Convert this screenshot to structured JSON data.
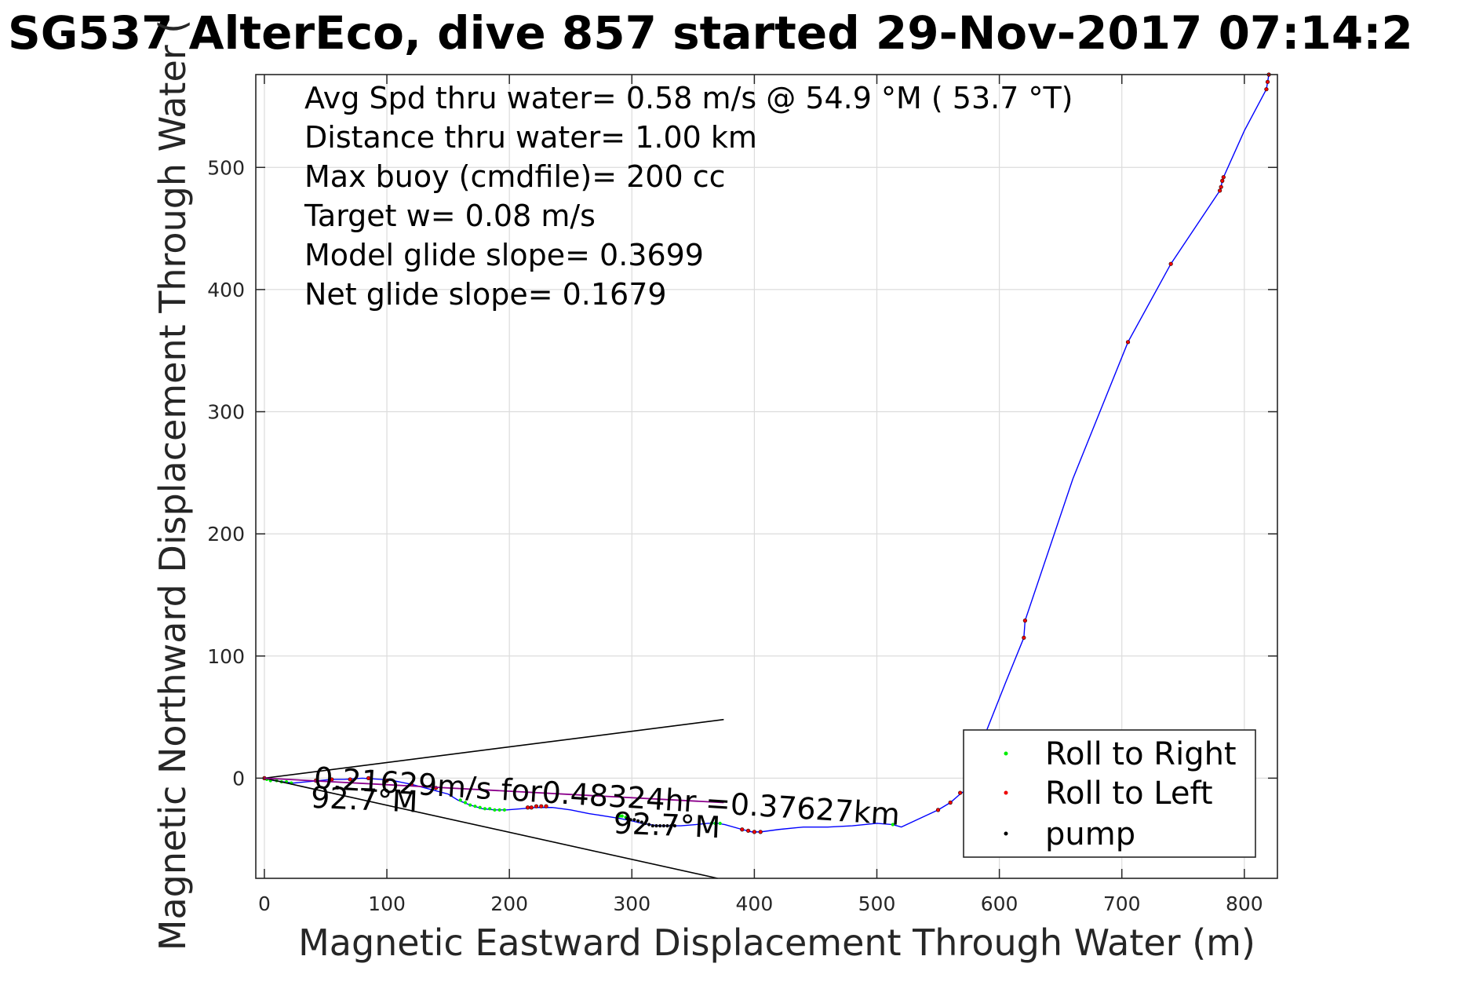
{
  "chart_data": {
    "type": "line",
    "title": "SG537 AlterEco, dive 857 started 29-Nov-2017 07:14:2",
    "xlabel": "Magnetic Eastward Displacement Through Water (m)",
    "ylabel": "Magnetic Northward Displacement Through Water (",
    "xlim": [
      -7,
      827
    ],
    "ylim": [
      -82,
      576
    ],
    "xticks": [
      0,
      100,
      200,
      300,
      400,
      500,
      600,
      700,
      800
    ],
    "yticks": [
      0,
      100,
      200,
      300,
      400,
      500
    ],
    "xtick_labels": [
      "0",
      "100",
      "200",
      "300",
      "400",
      "500",
      "600",
      "700",
      "800"
    ],
    "ytick_labels": [
      "0",
      "100",
      "200",
      "300",
      "400",
      "500"
    ],
    "grid": true,
    "colors": {
      "track": "#0000ff",
      "roll_right": "#00ee00",
      "roll_left": "#ee0000",
      "pump": "#000000",
      "axis": "#262626",
      "grid": "#dcdcdc"
    },
    "info_lines": [
      "Avg Spd thru water=  0.58 m/s @  54.9 °M ( 53.7 °T)",
      "Distance thru water=  1.00 km",
      "Max buoy (cmdfile)= 200 cc",
      "Target w= 0.08 m/s",
      "Model glide slope= 0.3699",
      "Net glide slope= 0.1679"
    ],
    "current_annotation": {
      "text": "0.21629m/s for0.48324hr =0.37627km",
      "start": [
        0,
        0
      ],
      "end": [
        375,
        -20
      ],
      "rotation_deg": 3.6
    },
    "heading_labels": [
      {
        "text": "92.7°M",
        "x": 38,
        "y": -15
      },
      {
        "text": "92.7°M",
        "x": 285,
        "y": -36
      }
    ],
    "cone_lines": [
      {
        "x": [
          0,
          375
        ],
        "y": [
          0,
          48
        ]
      },
      {
        "x": [
          0,
          370
        ],
        "y": [
          0,
          -84
        ]
      }
    ],
    "legend": {
      "location": "bottom-right",
      "entries": [
        "Roll to Right",
        "Roll to Left",
        "pump"
      ]
    },
    "series": [
      {
        "name": "track",
        "style": "line",
        "x": [
          0,
          8,
          16,
          24,
          34,
          45,
          55,
          65,
          80,
          95,
          105,
          120,
          135,
          150,
          158,
          168,
          178,
          188,
          198,
          210,
          222,
          235,
          250,
          265,
          278,
          290,
          300,
          308,
          315,
          322,
          330,
          340,
          352,
          362,
          370,
          376,
          390,
          398,
          405,
          420,
          440,
          460,
          480,
          500,
          513,
          520,
          535,
          550,
          560,
          568,
          575,
          590,
          605,
          620,
          621,
          660,
          705,
          740,
          780,
          781,
          782,
          783,
          800,
          818,
          819,
          820
        ],
        "y": [
          0,
          -2,
          -3,
          -4,
          -3,
          -2,
          -1,
          -1,
          0,
          -1,
          -2,
          -5,
          -9,
          -13,
          -18,
          -22,
          -25,
          -26,
          -26,
          -25,
          -24,
          -24,
          -26,
          -29,
          -31,
          -33,
          -35,
          -37,
          -38,
          -39,
          -39,
          -39,
          -38,
          -37,
          -37,
          -38,
          -42,
          -44,
          -44,
          -42,
          -40,
          -40,
          -39,
          -37,
          -38,
          -40,
          -33,
          -26,
          -20,
          -13,
          -8,
          40,
          78,
          115,
          129,
          245,
          357,
          421,
          481,
          484,
          489,
          492,
          530,
          564,
          570,
          576
        ]
      },
      {
        "name": "Roll to Right",
        "style": "marker",
        "x": [
          2,
          5,
          10,
          14,
          18,
          22,
          160,
          164,
          168,
          172,
          176,
          180,
          184,
          188,
          192,
          196,
          290,
          292,
          295,
          365,
          368,
          372,
          513
        ],
        "y": [
          -1,
          -2,
          -2,
          -3,
          -3,
          -4,
          -18,
          -20,
          -22,
          -23,
          -24,
          -25,
          -25,
          -26,
          -26,
          -26,
          -31,
          -31,
          -32,
          -37,
          -37,
          -37,
          -38
        ]
      },
      {
        "name": "Roll to Left",
        "style": "marker",
        "x": [
          0,
          42,
          55,
          70,
          85,
          100,
          120,
          140,
          215,
          218,
          222,
          226,
          230,
          390,
          395,
          400,
          405,
          550,
          560,
          568,
          620,
          621,
          705,
          740,
          780,
          781,
          782,
          783,
          818,
          819,
          820
        ],
        "y": [
          0,
          -2,
          -1,
          -1,
          0,
          -2,
          -5,
          -8,
          -24,
          -24,
          -23,
          -23,
          -23,
          -42,
          -43,
          -44,
          -44,
          -26,
          -20,
          -12,
          115,
          129,
          357,
          421,
          481,
          484,
          489,
          492,
          564,
          570,
          576
        ],
        "also_pump": true
      },
      {
        "name": "pump",
        "style": "marker",
        "x": [
          296,
          299,
          302,
          305,
          308,
          311,
          314,
          317,
          320,
          323,
          326,
          329,
          332,
          335
        ],
        "y": [
          -33,
          -34,
          -34,
          -35,
          -36,
          -37,
          -38,
          -39,
          -39,
          -39,
          -39,
          -39,
          -39,
          -39
        ]
      }
    ]
  }
}
